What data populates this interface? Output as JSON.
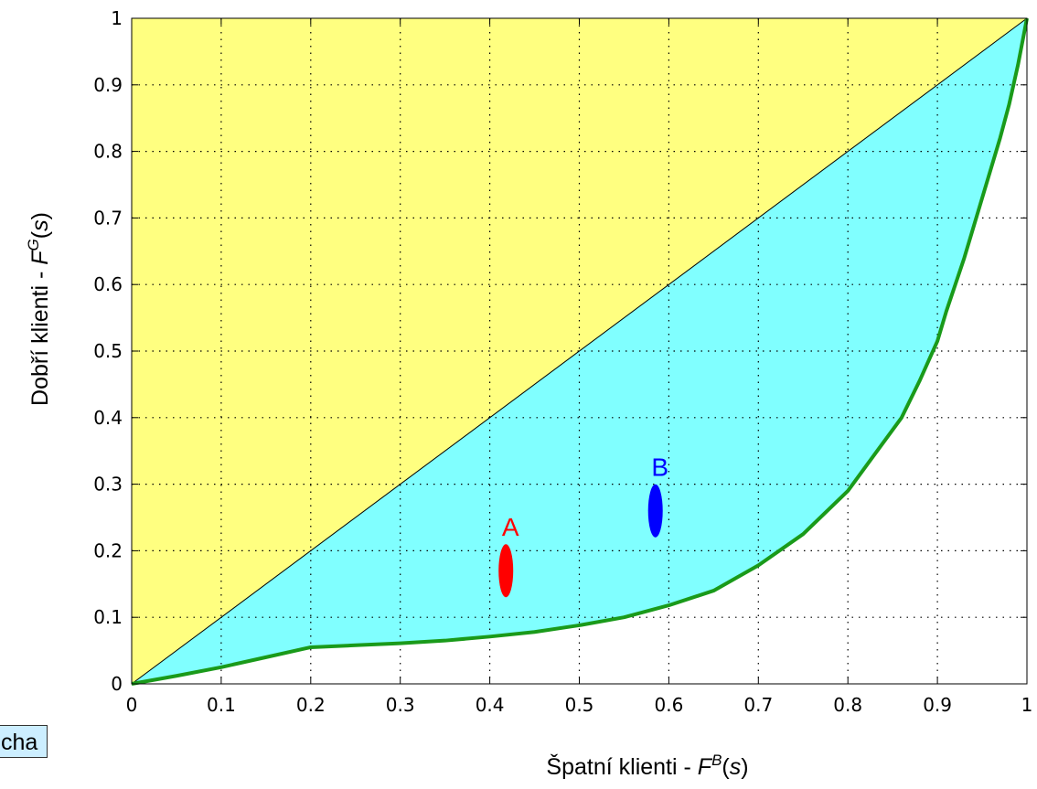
{
  "chart_data": {
    "type": "area",
    "xlabel_prefix": "Špatní klienti - ",
    "xlabel_symbol": "F",
    "xlabel_sup": "B",
    "xlabel_suffix_open": "(",
    "xlabel_var": "s",
    "xlabel_suffix_close": ")",
    "ylabel_prefix": "Dobří klienti - ",
    "ylabel_symbol": "F",
    "ylabel_sup": "G",
    "ylabel_suffix_open": "(",
    "ylabel_var": "s",
    "ylabel_suffix_close": ")",
    "xlim": [
      0,
      1
    ],
    "ylim": [
      0,
      1
    ],
    "xticks": [
      "0",
      "0.1",
      "0.2",
      "0.3",
      "0.4",
      "0.5",
      "0.6",
      "0.7",
      "0.8",
      "0.9",
      "1"
    ],
    "yticks": [
      "0",
      "0.1",
      "0.2",
      "0.3",
      "0.4",
      "0.5",
      "0.6",
      "0.7",
      "0.8",
      "0.9",
      "1"
    ],
    "xtick_values": [
      0,
      0.1,
      0.2,
      0.3,
      0.4,
      0.5,
      0.6,
      0.7,
      0.8,
      0.9,
      1
    ],
    "ytick_values": [
      0,
      0.1,
      0.2,
      0.3,
      0.4,
      0.5,
      0.6,
      0.7,
      0.8,
      0.9,
      1
    ],
    "grid": true,
    "grid_style": "dotted",
    "diagonal": {
      "x": [
        0,
        1
      ],
      "y": [
        0,
        1
      ],
      "color": "#000000"
    },
    "curve": {
      "color": "#1a9a1a",
      "x": [
        0,
        0.05,
        0.1,
        0.15,
        0.2,
        0.25,
        0.3,
        0.35,
        0.4,
        0.45,
        0.5,
        0.55,
        0.6,
        0.65,
        0.7,
        0.75,
        0.8,
        0.83,
        0.86,
        0.88,
        0.9,
        0.91,
        0.92,
        0.93,
        0.94,
        0.95,
        0.96,
        0.97,
        0.98,
        0.99,
        1.0
      ],
      "y": [
        0,
        0.012,
        0.025,
        0.04,
        0.055,
        0.058,
        0.061,
        0.065,
        0.071,
        0.078,
        0.088,
        0.1,
        0.118,
        0.14,
        0.178,
        0.225,
        0.29,
        0.345,
        0.4,
        0.455,
        0.515,
        0.56,
        0.6,
        0.64,
        0.685,
        0.73,
        0.775,
        0.82,
        0.87,
        0.93,
        1.0
      ]
    },
    "fill_above_diagonal": "#ffff80",
    "fill_between": "#80ffff",
    "markers": [
      {
        "label": "A",
        "x": 0.418,
        "y": 0.17,
        "color": "#ff0000"
      },
      {
        "label": "B",
        "x": 0.585,
        "y": 0.26,
        "color": "#0000ff"
      }
    ]
  },
  "side_label": "cha"
}
